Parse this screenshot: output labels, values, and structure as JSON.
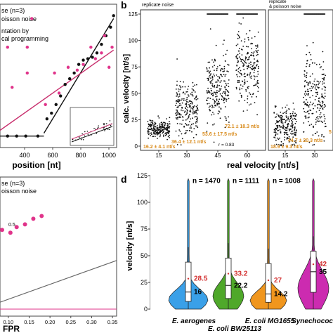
{
  "colors": {
    "points": "#111111",
    "pink": "#e0338a",
    "pink_line": "#c8306e",
    "orange": "#d88a1a",
    "red": "#d32f2f",
    "grey_line": "#666666",
    "violin_blue": "#3aa0e8",
    "violin_green": "#4fa82a",
    "violin_orange": "#f0961e",
    "violin_magenta": "#cc2bb0"
  },
  "panels": {
    "a": {
      "legend": [
        "se (n=3)",
        "oisson noise",
        "ntation by",
        "cal programming"
      ],
      "xlabel": "position [nt]",
      "xticks": [
        "400",
        "600",
        "800",
        "1000"
      ]
    },
    "b": {
      "label": "b",
      "facet_left_title": "replicate noise",
      "facet_right_title": "replicate\n& poisson noise",
      "facet_right_title_lines": [
        "replicate",
        "& poisson noise"
      ],
      "ylabel": "calc. velocity [nt/s]",
      "xlabel": "real velocity [nt/s]",
      "yticks": [
        "0",
        "25",
        "50",
        "75",
        "100",
        "125"
      ],
      "xticks_left": [
        "15",
        "30",
        "45",
        "60"
      ],
      "xticks_right": [
        "15",
        "30"
      ],
      "r_label": "r = 0.83",
      "left_annotations": [
        "16.2 ± 4.1 nt/s",
        "36.4 ± 12.1 nt/s",
        "53.6 ± 17.5 nt/s",
        "72.1 ± 18.3 nt/s"
      ],
      "right_annotations": [
        "18.9 ± 9.3 nt/s",
        "44.7 ± 20.3 nt/s",
        "5"
      ]
    },
    "c": {
      "legend": [
        "se (n=3)",
        "oisson noise"
      ],
      "point_label": "0.5",
      "xlabel": "FPR",
      "xticks": [
        "0.10",
        "0.15",
        "0.20",
        "0.25",
        "0.30",
        "0.35"
      ]
    },
    "d": {
      "label": "d",
      "ylabel": "velocity [nt/s]",
      "yticks": [
        "0",
        "25",
        "50",
        "75",
        "100",
        "125"
      ],
      "groups_top": [
        "E. aerogenes",
        "E. coli MG1655",
        "Synechococ"
      ],
      "groups_bottom": [
        "E. coli BW25113"
      ]
    }
  },
  "chart_data": [
    {
      "panel": "a",
      "type": "scatter",
      "title": "",
      "xlabel": "position [nt]",
      "ylabel": "",
      "xlim": [
        250,
        1020
      ],
      "ylim": [
        0,
        100
      ],
      "series": [
        {
          "name": "",
          "points": [
            [
              300,
              8
            ],
            [
              360,
              8
            ],
            [
              420,
              8
            ],
            [
              500,
              8
            ],
            [
              560,
              20
            ],
            [
              590,
              24
            ],
            [
              620,
              30
            ],
            [
              650,
              36
            ],
            [
              680,
              44
            ],
            [
              710,
              48
            ],
            [
              740,
              52
            ],
            [
              770,
              58
            ],
            [
              800,
              61
            ],
            [
              830,
              62
            ],
            [
              860,
              63
            ],
            [
              890,
              66
            ],
            [
              920,
              72
            ],
            [
              950,
              78
            ],
            [
              980,
              84
            ],
            [
              1000,
              92
            ]
          ]
        },
        {
          "name": "",
          "points": [
            [
              330,
              42
            ],
            [
              430,
              52
            ],
            [
              460,
              90
            ],
            [
              550,
              30
            ],
            [
              610,
              52
            ],
            [
              640,
              38
            ],
            [
              700,
              56
            ],
            [
              760,
              54
            ],
            [
              800,
              58
            ],
            [
              850,
              70
            ],
            [
              880,
              62
            ],
            [
              920,
              66
            ],
            [
              940,
              78
            ],
            [
              970,
              56
            ],
            [
              990,
              70
            ],
            [
              300,
              70
            ],
            [
              430,
              70
            ]
          ]
        }
      ],
      "fit_lines": [
        {
          "x": [
            250,
            540
          ],
          "y": [
            8,
            8
          ]
        },
        {
          "x": [
            540,
            1000
          ],
          "y": [
            10,
            90
          ]
        },
        {
          "x": [
            250,
            1000
          ],
          "y": [
            12,
            68
          ]
        }
      ]
    },
    {
      "panel": "b",
      "type": "scatter",
      "title": "",
      "xlabel": "real velocity [nt/s]",
      "ylabel": "calc. velocity [nt/s]",
      "ylim": [
        0,
        125
      ],
      "facets": [
        {
          "title": "replicate noise",
          "x_categories": [
            15,
            30,
            45,
            60
          ],
          "summary": [
            {
              "x": 15,
              "mean": 16.2,
              "sd": 4.1
            },
            {
              "x": 30,
              "mean": 36.4,
              "sd": 12.1
            },
            {
              "x": 45,
              "mean": 53.6,
              "sd": 17.5
            },
            {
              "x": 60,
              "mean": 72.1,
              "sd": 18.3
            }
          ],
          "r": 0.83
        },
        {
          "title": "replicate & poisson noise",
          "x_categories": [
            15,
            30
          ],
          "summary": [
            {
              "x": 15,
              "mean": 18.9,
              "sd": 9.3
            },
            {
              "x": 30,
              "mean": 44.7,
              "sd": 20.3
            }
          ]
        }
      ]
    },
    {
      "panel": "c",
      "type": "scatter",
      "title": "",
      "xlabel": "FPR",
      "ylabel": "",
      "xlim": [
        0.08,
        0.36
      ],
      "series": [
        {
          "name": "",
          "points": [
            [
              0.085,
              0.62
            ],
            [
              0.105,
              0.6
            ],
            [
              0.12,
              0.64
            ],
            [
              0.14,
              0.66
            ],
            [
              0.16,
              0.7
            ],
            [
              0.18,
              0.72
            ]
          ]
        }
      ],
      "reference_line": {
        "x": [
          0.08,
          0.36
        ],
        "y": [
          0.1,
          0.4
        ]
      }
    },
    {
      "panel": "d",
      "type": "violin",
      "title": "",
      "xlabel": "",
      "ylabel": "velocity [nt/s]",
      "ylim": [
        0,
        125
      ],
      "categories": [
        "E. aerogenes",
        "E. coli BW25113",
        "E. coli MG1655",
        "Synechococ"
      ],
      "n": [
        1470,
        1111,
        1008,
        null
      ],
      "mean": [
        28.5,
        33.2,
        27,
        42
      ],
      "median": [
        16,
        22.2,
        14.2,
        35
      ],
      "n_labels": [
        "n = 1470",
        "n = 1111",
        "n = 1008",
        ""
      ],
      "mean_labels": [
        "28.5",
        "33.2",
        "27",
        "42"
      ],
      "median_labels": [
        "16",
        "22.2",
        "14.2",
        "35"
      ]
    }
  ]
}
